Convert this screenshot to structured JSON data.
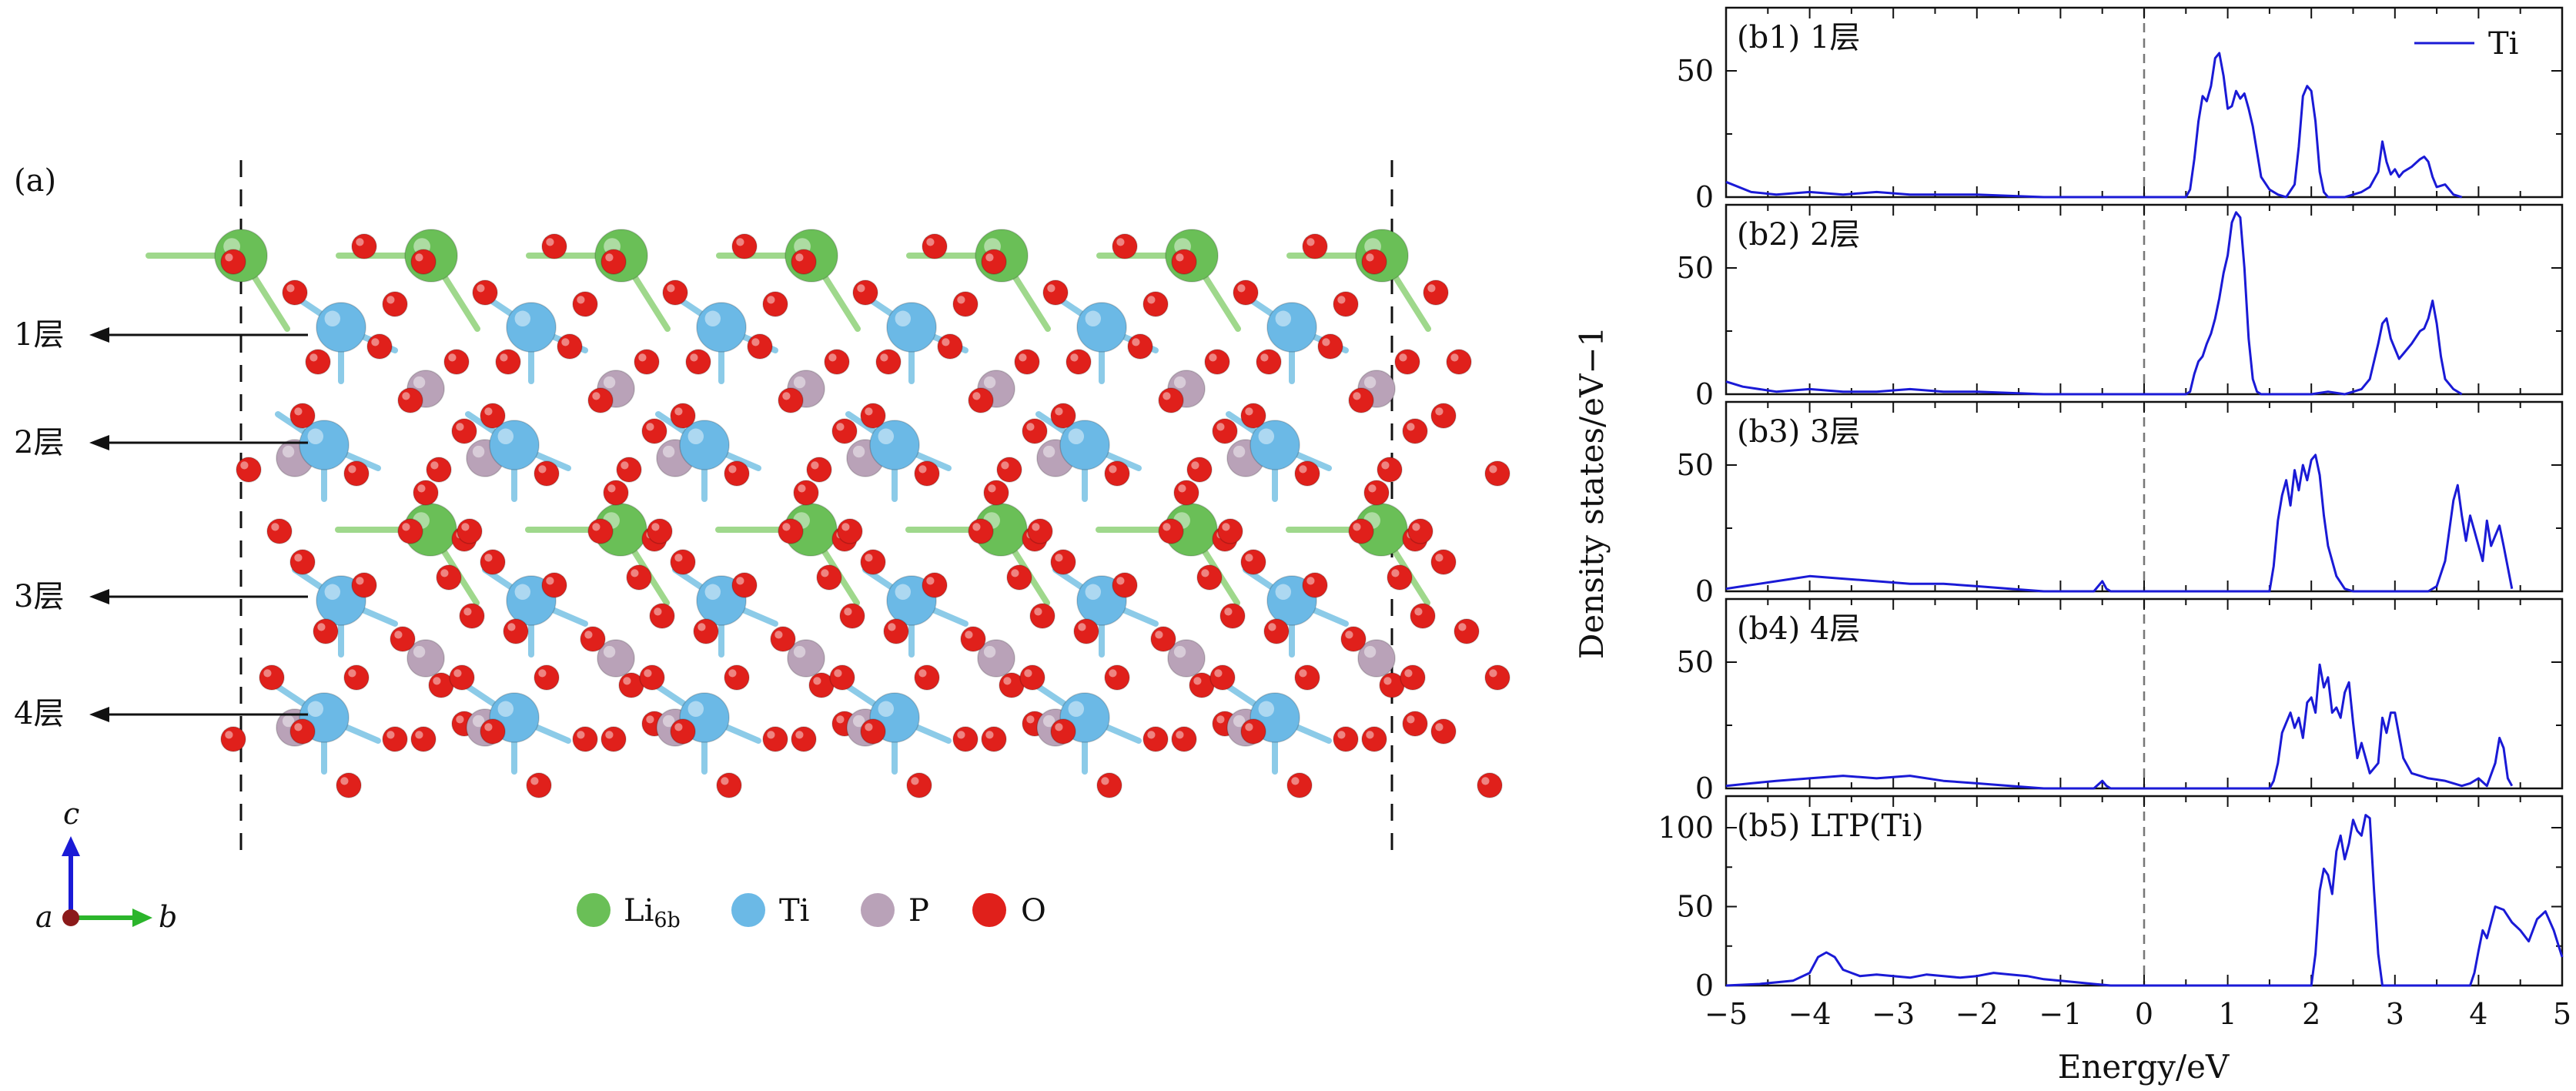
{
  "figure": {
    "panel_a_label": "(a)",
    "layer_labels": [
      "1层",
      "2层",
      "3层",
      "4层"
    ],
    "axes_triad": {
      "c": "c",
      "a": "a",
      "b": "b"
    },
    "legend": [
      {
        "label": "Li",
        "subscript": "6b",
        "color": "#6abf57"
      },
      {
        "label": "Ti",
        "subscript": "",
        "color": "#6bb9e6"
      },
      {
        "label": "P",
        "subscript": "",
        "color": "#b9a2b8"
      },
      {
        "label": "O",
        "subscript": "",
        "color": "#e0201b"
      }
    ],
    "atom_colors": {
      "li": "#6abf57",
      "ti": "#6bb9e6",
      "p": "#b9a2b8",
      "o": "#e0201b",
      "bond_green": "#9fd88c",
      "bond_blue": "#8ccbe8"
    }
  },
  "chart_data": {
    "type": "line",
    "xlabel": "Energy/eV",
    "ylabel": "Density states/eV−1",
    "xlim": [
      -5,
      5
    ],
    "xticks": [
      -5,
      -4,
      -3,
      -2,
      -1,
      0,
      1,
      2,
      3,
      4,
      5
    ],
    "fermi_line_x": 0,
    "line_color": "#1a1ad6",
    "legend": {
      "label": "Ti",
      "placement": "top-right"
    },
    "panels": [
      {
        "label": "(b1) 1层",
        "ylim": [
          0,
          75
        ],
        "yticks": [
          0,
          50
        ],
        "x": [
          -5.0,
          -4.7,
          -4.4,
          -4.0,
          -3.6,
          -3.2,
          -2.8,
          -2.4,
          -2.0,
          -1.6,
          -1.2,
          0.5,
          0.55,
          0.6,
          0.65,
          0.7,
          0.75,
          0.8,
          0.85,
          0.9,
          0.95,
          1.0,
          1.05,
          1.1,
          1.15,
          1.2,
          1.25,
          1.3,
          1.35,
          1.4,
          1.5,
          1.6,
          1.7,
          1.8,
          1.85,
          1.9,
          1.95,
          2.0,
          2.05,
          2.1,
          2.15,
          2.2,
          2.4,
          2.6,
          2.7,
          2.8,
          2.85,
          2.9,
          2.95,
          3.0,
          3.05,
          3.1,
          3.2,
          3.3,
          3.35,
          3.4,
          3.45,
          3.5,
          3.6,
          3.7,
          3.8
        ],
        "y": [
          6,
          2,
          1,
          2,
          1,
          2,
          1,
          1,
          1,
          0.5,
          0,
          0,
          3,
          15,
          30,
          40,
          38,
          44,
          55,
          57,
          48,
          35,
          36,
          42,
          39,
          41,
          35,
          28,
          18,
          8,
          3,
          1,
          0,
          5,
          20,
          40,
          44,
          42,
          30,
          10,
          2,
          0,
          0,
          2,
          4,
          10,
          22,
          14,
          9,
          11,
          8,
          10,
          12,
          15,
          16,
          14,
          8,
          4,
          5,
          1,
          0
        ]
      },
      {
        "label": "(b2) 2层",
        "ylim": [
          0,
          75
        ],
        "yticks": [
          0,
          50
        ],
        "x": [
          -5.0,
          -4.8,
          -4.4,
          -4.0,
          -3.6,
          -3.2,
          -2.8,
          -2.4,
          -2.0,
          -1.6,
          -1.2,
          0.5,
          0.55,
          0.6,
          0.65,
          0.7,
          0.75,
          0.8,
          0.85,
          0.9,
          0.95,
          1.0,
          1.05,
          1.1,
          1.15,
          1.2,
          1.25,
          1.3,
          1.35,
          1.4,
          1.5,
          2.0,
          2.2,
          2.4,
          2.6,
          2.7,
          2.8,
          2.85,
          2.9,
          2.95,
          3.0,
          3.05,
          3.1,
          3.2,
          3.3,
          3.35,
          3.4,
          3.45,
          3.5,
          3.55,
          3.6,
          3.7,
          3.8
        ],
        "y": [
          5,
          3,
          1,
          2,
          1,
          1,
          2,
          1,
          1,
          0.5,
          0,
          0,
          1,
          8,
          13,
          15,
          20,
          24,
          30,
          38,
          48,
          55,
          68,
          72,
          70,
          50,
          22,
          6,
          1,
          0,
          0,
          0,
          1,
          0,
          2,
          6,
          20,
          28,
          30,
          22,
          18,
          14,
          16,
          20,
          25,
          26,
          30,
          37,
          28,
          15,
          6,
          2,
          0
        ]
      },
      {
        "label": "(b3) 3层",
        "ylim": [
          0,
          75
        ],
        "yticks": [
          0,
          50
        ],
        "x": [
          -5.0,
          -4.8,
          -4.6,
          -4.4,
          -4.2,
          -4.0,
          -3.6,
          -3.2,
          -2.8,
          -2.4,
          -2.0,
          -1.6,
          -1.2,
          -0.6,
          -0.5,
          -0.45,
          -0.4,
          0.0,
          1.5,
          1.55,
          1.6,
          1.65,
          1.7,
          1.75,
          1.8,
          1.85,
          1.9,
          1.95,
          2.0,
          2.05,
          2.1,
          2.15,
          2.2,
          2.3,
          2.4,
          2.5,
          3.4,
          3.5,
          3.6,
          3.7,
          3.75,
          3.8,
          3.85,
          3.9,
          3.95,
          4.0,
          4.05,
          4.1,
          4.15,
          4.2,
          4.25,
          4.3,
          4.4
        ],
        "y": [
          1,
          2,
          3,
          4,
          5,
          6,
          5,
          4,
          3,
          3,
          2,
          1,
          0,
          0,
          4,
          1,
          0,
          0,
          0,
          10,
          28,
          38,
          44,
          34,
          48,
          40,
          50,
          44,
          52,
          54,
          46,
          30,
          18,
          6,
          1,
          0,
          0,
          2,
          12,
          36,
          42,
          30,
          20,
          30,
          24,
          18,
          12,
          28,
          18,
          22,
          26,
          18,
          1
        ]
      },
      {
        "label": "(b4) 4层",
        "ylim": [
          0,
          75
        ],
        "yticks": [
          0,
          50
        ],
        "x": [
          -5.0,
          -4.7,
          -4.4,
          -4.0,
          -3.6,
          -3.2,
          -2.8,
          -2.4,
          -2.0,
          -1.6,
          -1.2,
          -0.6,
          -0.5,
          -0.45,
          -0.4,
          0.0,
          1.5,
          1.55,
          1.6,
          1.65,
          1.7,
          1.75,
          1.8,
          1.85,
          1.9,
          1.95,
          2.0,
          2.05,
          2.1,
          2.15,
          2.2,
          2.25,
          2.3,
          2.35,
          2.4,
          2.45,
          2.5,
          2.55,
          2.6,
          2.7,
          2.8,
          2.85,
          2.9,
          2.95,
          3.0,
          3.1,
          3.2,
          3.4,
          3.6,
          3.8,
          3.9,
          4.0,
          4.1,
          4.2,
          4.25,
          4.3,
          4.35,
          4.4
        ],
        "y": [
          1,
          2,
          3,
          4,
          5,
          4,
          5,
          3,
          2,
          1,
          0,
          0,
          3,
          1,
          0,
          0,
          0,
          3,
          10,
          22,
          26,
          30,
          24,
          28,
          20,
          34,
          36,
          30,
          49,
          40,
          44,
          30,
          32,
          28,
          38,
          42,
          26,
          12,
          18,
          6,
          10,
          28,
          22,
          30,
          30,
          12,
          6,
          4,
          3,
          1,
          2,
          4,
          1,
          10,
          20,
          16,
          4,
          1
        ]
      },
      {
        "label": "(b5) LTP(Ti)",
        "ylim": [
          0,
          120
        ],
        "yticks": [
          0,
          50,
          100
        ],
        "x": [
          -5.0,
          -4.6,
          -4.2,
          -4.0,
          -3.9,
          -3.8,
          -3.7,
          -3.6,
          -3.5,
          -3.4,
          -3.2,
          -3.0,
          -2.8,
          -2.6,
          -2.4,
          -2.2,
          -2.0,
          -1.8,
          -1.6,
          -1.4,
          -1.2,
          -1.0,
          -0.8,
          -0.6,
          -0.4,
          0.0,
          2.0,
          2.05,
          2.1,
          2.15,
          2.2,
          2.25,
          2.3,
          2.35,
          2.4,
          2.45,
          2.5,
          2.55,
          2.6,
          2.65,
          2.7,
          2.75,
          2.8,
          2.85,
          3.9,
          3.95,
          4.0,
          4.05,
          4.1,
          4.2,
          4.3,
          4.4,
          4.5,
          4.6,
          4.7,
          4.8,
          4.9,
          5.0
        ],
        "y": [
          0,
          1,
          3,
          8,
          18,
          21,
          18,
          10,
          8,
          6,
          7,
          6,
          5,
          7,
          6,
          5,
          6,
          8,
          7,
          6,
          4,
          3,
          2,
          1,
          0,
          0,
          0,
          20,
          60,
          74,
          70,
          58,
          85,
          95,
          80,
          90,
          105,
          98,
          95,
          108,
          106,
          60,
          20,
          0,
          0,
          8,
          22,
          35,
          30,
          50,
          48,
          40,
          35,
          28,
          42,
          47,
          35,
          18
        ]
      }
    ]
  }
}
